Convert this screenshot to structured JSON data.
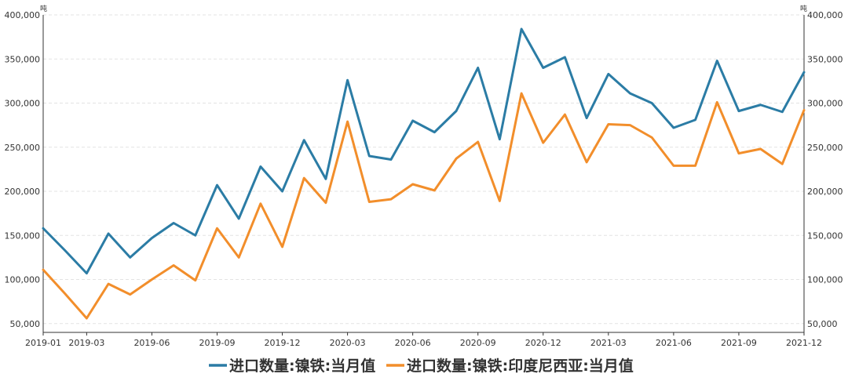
{
  "chart_data": {
    "type": "line",
    "title": "",
    "xlabel": "",
    "ylabel_left": "吨",
    "ylabel_right": "吨",
    "ylim": [
      40000,
      400000
    ],
    "y_ticks": [
      50000,
      100000,
      150000,
      200000,
      250000,
      300000,
      350000,
      400000
    ],
    "y_tick_labels": [
      "50,000",
      "100,000",
      "150,000",
      "200,000",
      "250,000",
      "300,000",
      "350,000",
      "400,000"
    ],
    "x": [
      "2019-01",
      "2019-02",
      "2019-03",
      "2019-04",
      "2019-05",
      "2019-06",
      "2019-07",
      "2019-08",
      "2019-09",
      "2019-10",
      "2019-11",
      "2019-12",
      "2020-01",
      "2020-02",
      "2020-03",
      "2020-04",
      "2020-05",
      "2020-06",
      "2020-07",
      "2020-08",
      "2020-09",
      "2020-10",
      "2020-11",
      "2020-12",
      "2021-01",
      "2021-02",
      "2021-03",
      "2021-04",
      "2021-05",
      "2021-06",
      "2021-07",
      "2021-08",
      "2021-09",
      "2021-10",
      "2021-11",
      "2021-12"
    ],
    "x_tick_labels": [
      "2019-01",
      "2019-03",
      "2019-06",
      "2019-09",
      "2019-12",
      "2020-03",
      "2020-06",
      "2020-09",
      "2020-12",
      "2021-03",
      "2021-06",
      "2021-09",
      "2021-12"
    ],
    "grid": true,
    "legend_position": "bottom",
    "series": [
      {
        "name": "进口数量:镍铁:当月值",
        "color": "#2b7ca5",
        "values": [
          158000,
          133000,
          107000,
          152000,
          125000,
          147000,
          164000,
          150000,
          207000,
          169000,
          228000,
          200000,
          258000,
          214000,
          326000,
          240000,
          236000,
          280000,
          267000,
          291000,
          340000,
          259000,
          384000,
          340000,
          352000,
          283000,
          333000,
          311000,
          300000,
          272000,
          281000,
          348000,
          291000,
          298000,
          290000,
          335000
        ]
      },
      {
        "name": "进口数量:镍铁:印度尼西亚:当月值",
        "color": "#f28e2b",
        "values": [
          111000,
          84000,
          56000,
          95000,
          83000,
          100000,
          116000,
          99000,
          158000,
          125000,
          186000,
          137000,
          215000,
          187000,
          279000,
          188000,
          191000,
          208000,
          201000,
          237000,
          256000,
          189000,
          311000,
          255000,
          287000,
          233000,
          276000,
          275000,
          261000,
          229000,
          229000,
          301000,
          243000,
          248000,
          231000,
          292000
        ]
      }
    ]
  }
}
